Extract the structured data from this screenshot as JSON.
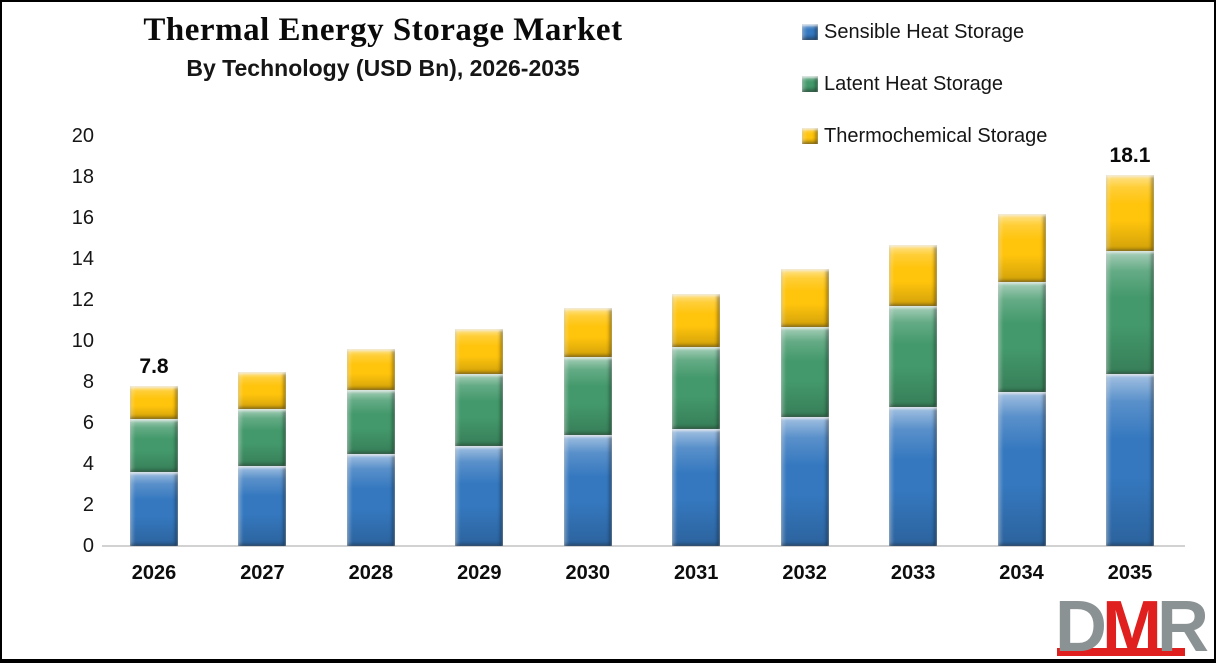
{
  "header": {
    "title": "Thermal Energy Storage Market",
    "subtitle": "By Technology (USD Bn), 2026-2035"
  },
  "legend": {
    "items": [
      {
        "label": "Sensible Heat Storage"
      },
      {
        "label": "Latent Heat Storage"
      },
      {
        "label": "Thermochemical Storage"
      }
    ]
  },
  "chart_data": {
    "type": "bar",
    "stacked": true,
    "title": "Thermal Energy Storage Market",
    "subtitle": "By Technology (USD Bn), 2026-2035",
    "xlabel": "",
    "ylabel": "",
    "units": "USD Bn",
    "categories": [
      "2026",
      "2027",
      "2028",
      "2029",
      "2030",
      "2031",
      "2032",
      "2033",
      "2034",
      "2035"
    ],
    "series": [
      {
        "name": "Sensible Heat Storage",
        "color": "#3578BF",
        "values": [
          3.6,
          3.9,
          4.5,
          4.9,
          5.4,
          5.7,
          6.3,
          6.8,
          7.5,
          8.4
        ]
      },
      {
        "name": "Latent Heat Storage",
        "color": "#43996B",
        "values": [
          2.6,
          2.8,
          3.1,
          3.5,
          3.8,
          4.0,
          4.4,
          4.9,
          5.4,
          6.0
        ]
      },
      {
        "name": "Thermochemical Storage",
        "color": "#FFC40C",
        "values": [
          1.6,
          1.8,
          2.0,
          2.2,
          2.4,
          2.6,
          2.8,
          3.0,
          3.3,
          3.7
        ]
      }
    ],
    "totals": [
      7.8,
      8.5,
      9.6,
      10.6,
      11.6,
      12.3,
      13.5,
      14.7,
      16.2,
      18.1
    ],
    "value_labels": {
      "2026": "7.8",
      "2035": "18.1"
    },
    "ylim": [
      0,
      20
    ],
    "yticks": [
      0,
      2,
      4,
      6,
      8,
      10,
      12,
      14,
      16,
      18,
      20
    ],
    "grid": false,
    "legend_position": "top-right"
  },
  "watermark": {
    "letters": [
      "D",
      "M",
      "R"
    ],
    "gray": "#8B9294",
    "red": "#DF201E"
  }
}
